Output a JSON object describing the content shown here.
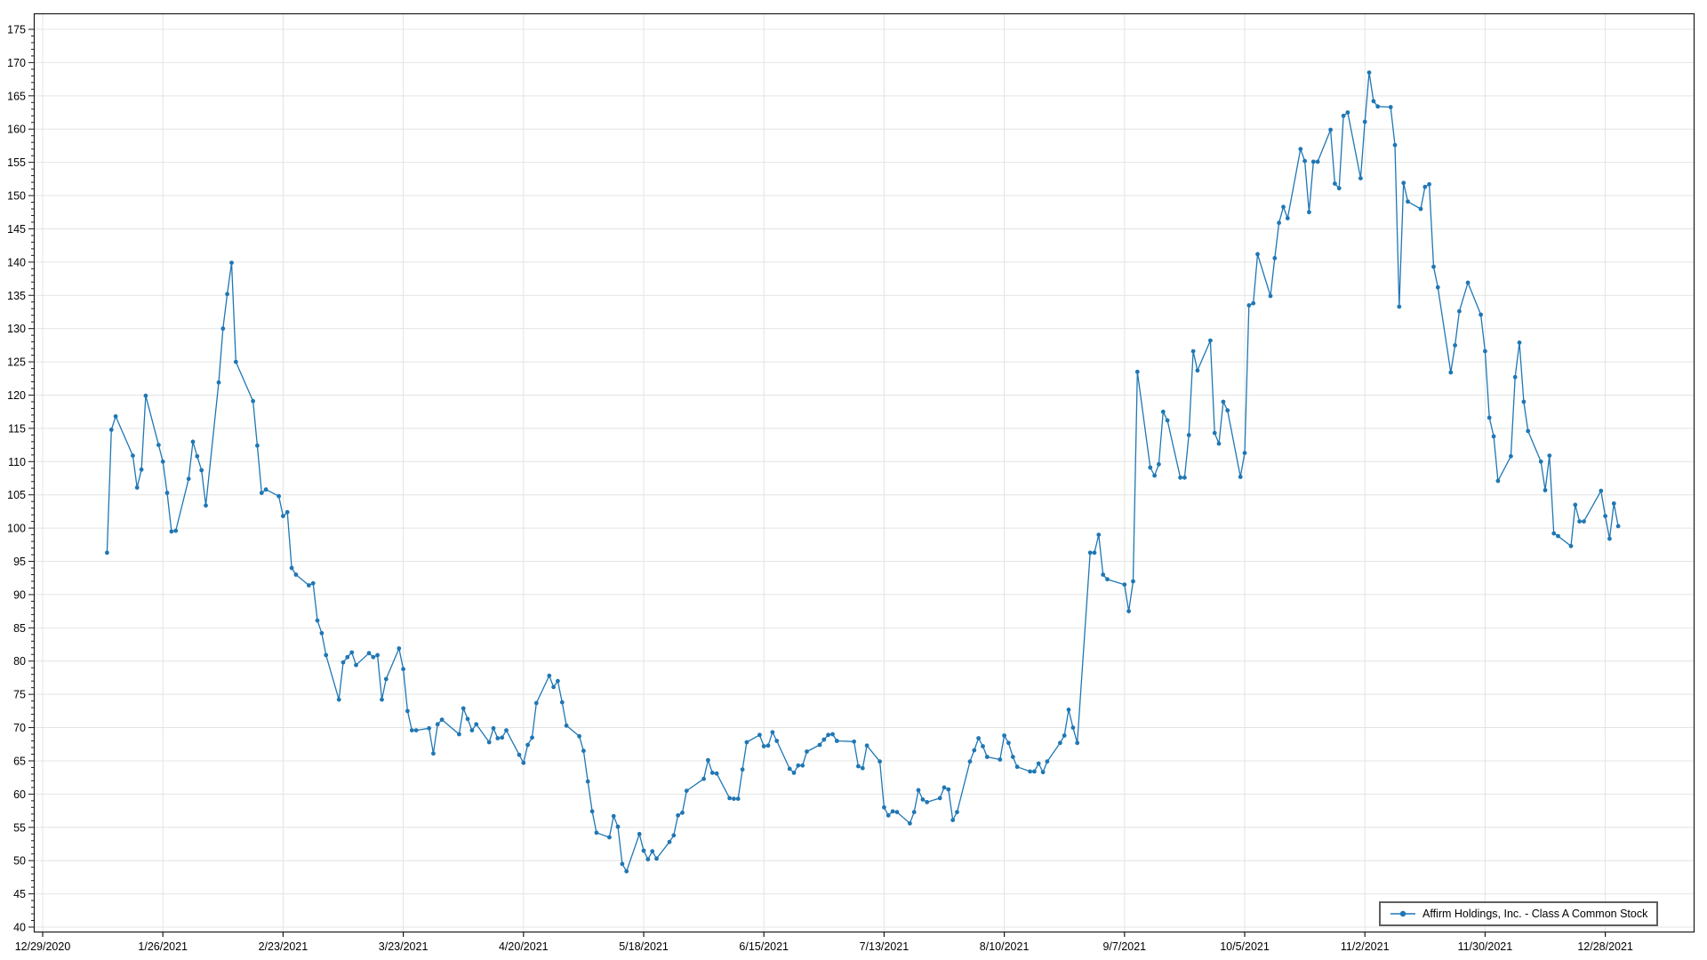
{
  "window": {
    "background": "#ffffff"
  },
  "chart_data": {
    "type": "line",
    "title": "",
    "xlabel": "",
    "ylabel": "",
    "grid": true,
    "legend_position": "bottom-right",
    "series_color": "#1f77b4",
    "gridline_color": "#e4e4e4",
    "axis_color": "#1a1a1a",
    "marker": "circle",
    "y_axis": {
      "min": 40,
      "max": 175,
      "tick_step": 5,
      "minor_step": 1
    },
    "x_axis": {
      "tick_labels": [
        "12/29/2020",
        "1/26/2021",
        "2/23/2021",
        "3/23/2021",
        "4/20/2021",
        "5/18/2021",
        "6/15/2021",
        "7/13/2021",
        "8/10/2021",
        "9/7/2021",
        "10/5/2021",
        "11/2/2021",
        "11/30/2021",
        "12/28/2021"
      ]
    },
    "series": [
      {
        "name": "Affirm Holdings, Inc. - Class A Common Stock",
        "color": "#1f77b4",
        "dates": [
          "1/13/2021",
          "1/14/2021",
          "1/15/2021",
          "1/19/2021",
          "1/20/2021",
          "1/21/2021",
          "1/22/2021",
          "1/25/2021",
          "1/26/2021",
          "1/27/2021",
          "1/28/2021",
          "1/29/2021",
          "2/1/2021",
          "2/2/2021",
          "2/3/2021",
          "2/4/2021",
          "2/5/2021",
          "2/8/2021",
          "2/9/2021",
          "2/10/2021",
          "2/11/2021",
          "2/12/2021",
          "2/16/2021",
          "2/17/2021",
          "2/18/2021",
          "2/19/2021",
          "2/22/2021",
          "2/23/2021",
          "2/24/2021",
          "2/25/2021",
          "2/26/2021",
          "3/1/2021",
          "3/2/2021",
          "3/3/2021",
          "3/4/2021",
          "3/5/2021",
          "3/8/2021",
          "3/9/2021",
          "3/10/2021",
          "3/11/2021",
          "3/12/2021",
          "3/15/2021",
          "3/16/2021",
          "3/17/2021",
          "3/18/2021",
          "3/19/2021",
          "3/22/2021",
          "3/23/2021",
          "3/24/2021",
          "3/25/2021",
          "3/26/2021",
          "3/29/2021",
          "3/30/2021",
          "3/31/2021",
          "4/1/2021",
          "4/5/2021",
          "4/6/2021",
          "4/7/2021",
          "4/8/2021",
          "4/9/2021",
          "4/12/2021",
          "4/13/2021",
          "4/14/2021",
          "4/15/2021",
          "4/16/2021",
          "4/19/2021",
          "4/20/2021",
          "4/21/2021",
          "4/22/2021",
          "4/23/2021",
          "4/26/2021",
          "4/27/2021",
          "4/28/2021",
          "4/29/2021",
          "4/30/2021",
          "5/3/2021",
          "5/4/2021",
          "5/5/2021",
          "5/6/2021",
          "5/7/2021",
          "5/10/2021",
          "5/11/2021",
          "5/12/2021",
          "5/13/2021",
          "5/14/2021",
          "5/17/2021",
          "5/18/2021",
          "5/19/2021",
          "5/20/2021",
          "5/21/2021",
          "5/24/2021",
          "5/25/2021",
          "5/26/2021",
          "5/27/2021",
          "5/28/2021",
          "6/1/2021",
          "6/2/2021",
          "6/3/2021",
          "6/4/2021",
          "6/7/2021",
          "6/8/2021",
          "6/9/2021",
          "6/10/2021",
          "6/11/2021",
          "6/14/2021",
          "6/15/2021",
          "6/16/2021",
          "6/17/2021",
          "6/18/2021",
          "6/21/2021",
          "6/22/2021",
          "6/23/2021",
          "6/24/2021",
          "6/25/2021",
          "6/28/2021",
          "6/29/2021",
          "6/30/2021",
          "7/1/2021",
          "7/2/2021",
          "7/6/2021",
          "7/7/2021",
          "7/8/2021",
          "7/9/2021",
          "7/12/2021",
          "7/13/2021",
          "7/14/2021",
          "7/15/2021",
          "7/16/2021",
          "7/19/2021",
          "7/20/2021",
          "7/21/2021",
          "7/22/2021",
          "7/23/2021",
          "7/26/2021",
          "7/27/2021",
          "7/28/2021",
          "7/29/2021",
          "7/30/2021",
          "8/2/2021",
          "8/3/2021",
          "8/4/2021",
          "8/5/2021",
          "8/6/2021",
          "8/9/2021",
          "8/10/2021",
          "8/11/2021",
          "8/12/2021",
          "8/13/2021",
          "8/16/2021",
          "8/17/2021",
          "8/18/2021",
          "8/19/2021",
          "8/20/2021",
          "8/23/2021",
          "8/24/2021",
          "8/25/2021",
          "8/26/2021",
          "8/27/2021",
          "8/30/2021",
          "8/31/2021",
          "9/1/2021",
          "9/2/2021",
          "9/3/2021",
          "9/7/2021",
          "9/8/2021",
          "9/9/2021",
          "9/10/2021",
          "9/13/2021",
          "9/14/2021",
          "9/15/2021",
          "9/16/2021",
          "9/17/2021",
          "9/20/2021",
          "9/21/2021",
          "9/22/2021",
          "9/23/2021",
          "9/24/2021",
          "9/27/2021",
          "9/28/2021",
          "9/29/2021",
          "9/30/2021",
          "10/1/2021",
          "10/4/2021",
          "10/5/2021",
          "10/6/2021",
          "10/7/2021",
          "10/8/2021",
          "10/11/2021",
          "10/12/2021",
          "10/13/2021",
          "10/14/2021",
          "10/15/2021",
          "10/18/2021",
          "10/19/2021",
          "10/20/2021",
          "10/21/2021",
          "10/22/2021",
          "10/25/2021",
          "10/26/2021",
          "10/27/2021",
          "10/28/2021",
          "10/29/2021",
          "11/1/2021",
          "11/2/2021",
          "11/3/2021",
          "11/4/2021",
          "11/5/2021",
          "11/8/2021",
          "11/9/2021",
          "11/10/2021",
          "11/11/2021",
          "11/12/2021",
          "11/15/2021",
          "11/16/2021",
          "11/17/2021",
          "11/18/2021",
          "11/19/2021",
          "11/22/2021",
          "11/23/2021",
          "11/24/2021",
          "11/26/2021",
          "11/29/2021",
          "11/30/2021",
          "12/1/2021",
          "12/2/2021",
          "12/3/2021",
          "12/6/2021",
          "12/7/2021",
          "12/8/2021",
          "12/9/2021",
          "12/10/2021",
          "12/13/2021",
          "12/14/2021",
          "12/15/2021",
          "12/16/2021",
          "12/17/2021",
          "12/20/2021",
          "12/21/2021",
          "12/22/2021",
          "12/23/2021",
          "12/27/2021",
          "12/28/2021",
          "12/29/2021",
          "12/30/2021",
          "12/31/2021"
        ],
        "values": [
          96.3,
          114.8,
          116.8,
          110.9,
          106.1,
          108.8,
          119.9,
          112.5,
          110.0,
          105.3,
          99.5,
          99.6,
          107.4,
          113.0,
          110.8,
          108.7,
          103.4,
          121.9,
          130.0,
          135.2,
          139.9,
          125.0,
          119.1,
          112.4,
          105.3,
          105.8,
          104.8,
          101.8,
          102.4,
          94.0,
          93.0,
          91.4,
          91.7,
          86.1,
          84.2,
          80.9,
          74.2,
          79.8,
          80.6,
          81.3,
          79.4,
          81.2,
          80.6,
          80.9,
          74.2,
          77.3,
          81.9,
          78.8,
          72.5,
          69.6,
          69.6,
          69.9,
          66.1,
          70.5,
          71.2,
          69.0,
          72.9,
          71.3,
          69.6,
          70.5,
          67.8,
          69.9,
          68.4,
          68.5,
          69.6,
          65.9,
          64.7,
          67.4,
          68.5,
          73.7,
          77.8,
          76.1,
          77.0,
          73.8,
          70.3,
          68.7,
          66.5,
          61.9,
          57.4,
          54.2,
          53.5,
          56.7,
          55.1,
          49.5,
          48.4,
          54.0,
          51.5,
          50.2,
          51.4,
          50.3,
          52.8,
          53.8,
          56.8,
          57.2,
          60.5,
          62.3,
          65.1,
          63.2,
          63.1,
          59.4,
          59.3,
          59.3,
          63.7,
          67.8,
          68.9,
          67.2,
          67.3,
          69.3,
          68.0,
          63.8,
          63.2,
          64.3,
          64.3,
          66.4,
          67.4,
          68.2,
          68.9,
          69.0,
          68.0,
          67.9,
          64.2,
          63.9,
          67.3,
          64.9,
          58.0,
          56.8,
          57.4,
          57.3,
          55.6,
          57.3,
          60.6,
          59.2,
          58.8,
          59.4,
          61.0,
          60.7,
          56.1,
          57.3,
          64.9,
          66.6,
          68.4,
          67.2,
          65.6,
          65.2,
          68.8,
          67.7,
          65.6,
          64.1,
          63.4,
          63.4,
          64.6,
          63.3,
          64.9,
          67.7,
          68.8,
          72.7,
          70.0,
          67.7,
          96.3,
          96.3,
          99.0,
          93.0,
          92.3,
          91.5,
          87.5,
          92.0,
          123.5,
          109.1,
          107.9,
          109.6,
          117.5,
          116.2,
          107.6,
          107.6,
          114.0,
          126.6,
          123.7,
          128.2,
          114.3,
          112.7,
          119.0,
          117.7,
          107.7,
          111.3,
          133.5,
          133.8,
          141.2,
          134.9,
          140.6,
          145.9,
          148.3,
          146.6,
          157.0,
          155.2,
          147.5,
          155.1,
          155.1,
          159.9,
          151.8,
          151.1,
          162.0,
          162.5,
          152.6,
          161.1,
          168.5,
          164.2,
          163.4,
          163.3,
          157.6,
          133.3,
          151.9,
          149.1,
          148.0,
          151.3,
          151.7,
          139.3,
          136.2,
          123.4,
          127.5,
          132.6,
          136.9,
          132.1,
          126.6,
          116.6,
          113.8,
          107.1,
          110.8,
          122.7,
          127.9,
          119.0,
          114.6,
          110.0,
          105.7,
          110.9,
          99.2,
          98.8,
          97.3,
          103.5,
          101.0,
          101.0,
          105.6,
          101.8,
          98.4,
          103.7,
          100.3
        ]
      }
    ]
  }
}
